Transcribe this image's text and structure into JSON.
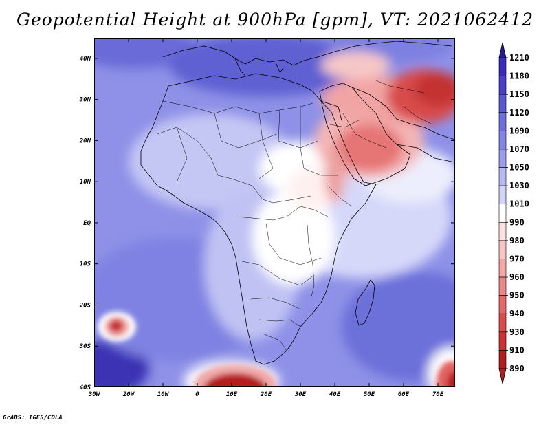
{
  "title": "Geopotential Height at 900hPa [gpm], VT: 2021062412",
  "footer": "GrADS: IGES/COLA",
  "map": {
    "region": "Africa and Arabian Peninsula",
    "lon_range": [
      -30,
      75
    ],
    "lat_range": [
      -40,
      45
    ],
    "lat_labels": [
      {
        "value": 40,
        "label": "40N"
      },
      {
        "value": 30,
        "label": "30N"
      },
      {
        "value": 20,
        "label": "20N"
      },
      {
        "value": 10,
        "label": "10N"
      },
      {
        "value": 0,
        "label": "EQ"
      },
      {
        "value": -10,
        "label": "10S"
      },
      {
        "value": -20,
        "label": "20S"
      },
      {
        "value": -30,
        "label": "30S"
      },
      {
        "value": -40,
        "label": "40S"
      }
    ],
    "lon_labels": [
      {
        "value": -30,
        "label": "30W"
      },
      {
        "value": -20,
        "label": "20W"
      },
      {
        "value": -10,
        "label": "10W"
      },
      {
        "value": 0,
        "label": "0"
      },
      {
        "value": 10,
        "label": "10E"
      },
      {
        "value": 20,
        "label": "20E"
      },
      {
        "value": 30,
        "label": "30E"
      },
      {
        "value": 40,
        "label": "40E"
      },
      {
        "value": 50,
        "label": "50E"
      },
      {
        "value": 60,
        "label": "60E"
      },
      {
        "value": 70,
        "label": "70E"
      }
    ]
  },
  "colorbar": {
    "levels": [
      "1210",
      "1180",
      "1150",
      "1120",
      "1090",
      "1070",
      "1050",
      "1030",
      "1010",
      "990",
      "980",
      "970",
      "960",
      "950",
      "940",
      "930",
      "910",
      "890"
    ],
    "colors": [
      "#2a1aa0",
      "#3a2ab8",
      "#4a40c8",
      "#5a58d0",
      "#6f70dc",
      "#8585e4",
      "#9c9ded",
      "#b6b8f3",
      "#d2d4f8",
      "#ffffff",
      "#fde0e0",
      "#f8c4c4",
      "#f2a6a6",
      "#ec8888",
      "#e46a6a",
      "#da4c4c",
      "#cc3232",
      "#b01e1e"
    ]
  },
  "colors": {
    "ocean_base": "#8b8ee6",
    "land_base": "#c6c8f5",
    "outline": "#000000"
  }
}
